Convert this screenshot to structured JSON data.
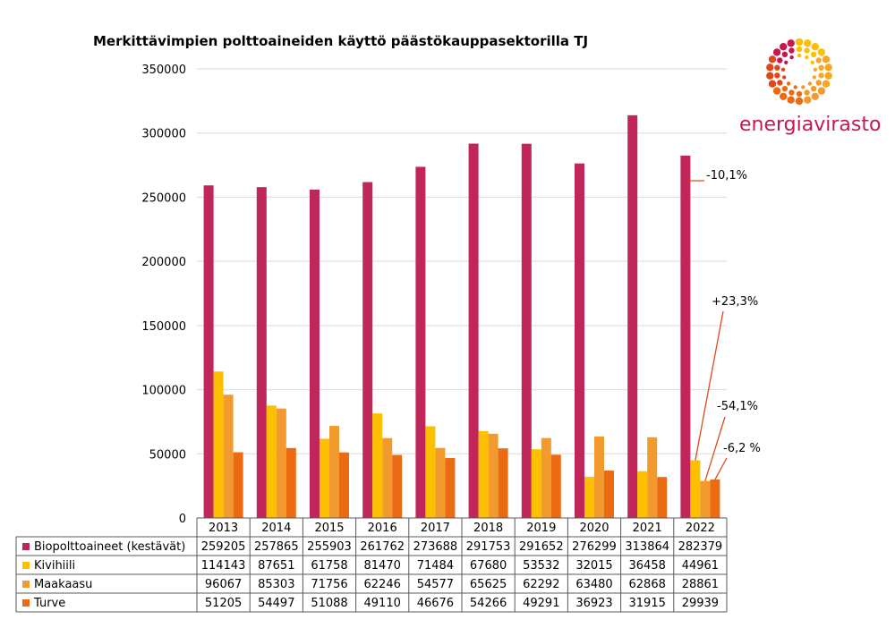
{
  "logo": {
    "text": "energiavirasto"
  },
  "chart_data": {
    "type": "bar",
    "title": "Merkittävimpien polttoaineiden käyttö päästökauppasektorilla TJ",
    "categories": [
      "2013",
      "2014",
      "2015",
      "2016",
      "2017",
      "2018",
      "2019",
      "2020",
      "2021",
      "2022"
    ],
    "series": [
      {
        "name": "Biopolttoaineet (kestävät)",
        "color": "#c0265a",
        "values": [
          259205,
          257865,
          255903,
          261762,
          273688,
          291753,
          291652,
          276299,
          313864,
          282379
        ]
      },
      {
        "name": "Kivihiili",
        "color": "#fcc000",
        "values": [
          114143,
          87651,
          61758,
          81470,
          71484,
          67680,
          53532,
          32015,
          36458,
          44961
        ]
      },
      {
        "name": "Maakaasu",
        "color": "#f29a2e",
        "values": [
          96067,
          85303,
          71756,
          62246,
          54577,
          65625,
          62292,
          63480,
          62868,
          28861
        ]
      },
      {
        "name": "Turve",
        "color": "#ec6b12",
        "values": [
          51205,
          54497,
          51088,
          49110,
          46676,
          54266,
          49291,
          36923,
          31915,
          29939
        ]
      }
    ],
    "ylim": [
      0,
      350000
    ],
    "yticks": [
      "0",
      "50000",
      "100000",
      "150000",
      "200000",
      "250000",
      "300000",
      "350000"
    ],
    "grid": true,
    "legend": "data-table",
    "annotations": [
      {
        "text": "-10,1%",
        "series": 0,
        "category": "2022"
      },
      {
        "text": "+23,3%",
        "series": 1,
        "category": "2022"
      },
      {
        "text": "-54,1%",
        "series": 2,
        "category": "2022"
      },
      {
        "text": "-6,2 %",
        "series": 3,
        "category": "2022"
      }
    ]
  }
}
